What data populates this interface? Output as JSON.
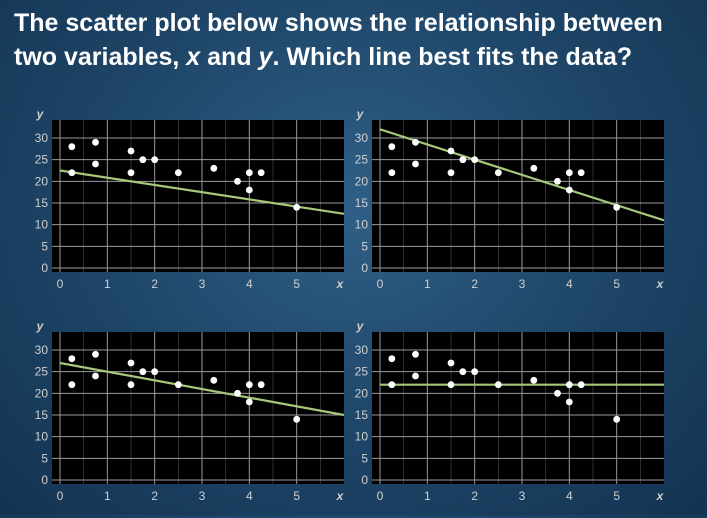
{
  "question": {
    "part1": "The scatter plot below shows the relationship between two variables, ",
    "var_x": "x",
    "and": " and ",
    "var_y": "y",
    "part2": ". Which line best fits the data?"
  },
  "colors": {
    "background": "#1d4466",
    "plot_bg": "#000000",
    "grid": "#9a9a9a",
    "points": "#ffffff",
    "fit_line": "#a5c87a",
    "axis_text": "#cfcfcf",
    "question_text": "#ffffff"
  },
  "chart_data": [
    {
      "type": "scatter",
      "xlabel": "x",
      "ylabel": "y",
      "xlim": [
        0,
        6
      ],
      "ylim": [
        0,
        30
      ],
      "xticks": [
        0,
        1,
        2,
        3,
        4,
        5
      ],
      "yticks": [
        0,
        5,
        10,
        15,
        20,
        25,
        30
      ],
      "grid": true,
      "points": [
        [
          0.25,
          28
        ],
        [
          0.25,
          22
        ],
        [
          0.75,
          29
        ],
        [
          0.75,
          24
        ],
        [
          1.5,
          27
        ],
        [
          1.5,
          22
        ],
        [
          1.75,
          25
        ],
        [
          2,
          25
        ],
        [
          2.5,
          22
        ],
        [
          3.25,
          23
        ],
        [
          3.75,
          20
        ],
        [
          4,
          22
        ],
        [
          4,
          18
        ],
        [
          4.25,
          22
        ],
        [
          5,
          14
        ]
      ],
      "line": [
        [
          0,
          22.5
        ],
        [
          6,
          12.5
        ]
      ]
    },
    {
      "type": "scatter",
      "xlabel": "x",
      "ylabel": "y",
      "xlim": [
        0,
        6
      ],
      "ylim": [
        0,
        30
      ],
      "xticks": [
        0,
        1,
        2,
        3,
        4,
        5
      ],
      "yticks": [
        0,
        5,
        10,
        15,
        20,
        25,
        30
      ],
      "grid": true,
      "points": [
        [
          0.25,
          28
        ],
        [
          0.25,
          22
        ],
        [
          0.75,
          29
        ],
        [
          0.75,
          24
        ],
        [
          1.5,
          27
        ],
        [
          1.5,
          22
        ],
        [
          1.75,
          25
        ],
        [
          2,
          25
        ],
        [
          2.5,
          22
        ],
        [
          3.25,
          23
        ],
        [
          3.75,
          20
        ],
        [
          4,
          22
        ],
        [
          4,
          18
        ],
        [
          4.25,
          22
        ],
        [
          5,
          14
        ]
      ],
      "line": [
        [
          0,
          32
        ],
        [
          6,
          11
        ]
      ]
    },
    {
      "type": "scatter",
      "xlabel": "x",
      "ylabel": "y",
      "xlim": [
        0,
        6
      ],
      "ylim": [
        0,
        30
      ],
      "xticks": [
        0,
        1,
        2,
        3,
        4,
        5
      ],
      "yticks": [
        0,
        5,
        10,
        15,
        20,
        25,
        30
      ],
      "grid": true,
      "points": [
        [
          0.25,
          28
        ],
        [
          0.25,
          22
        ],
        [
          0.75,
          29
        ],
        [
          0.75,
          24
        ],
        [
          1.5,
          27
        ],
        [
          1.5,
          22
        ],
        [
          1.75,
          25
        ],
        [
          2,
          25
        ],
        [
          2.5,
          22
        ],
        [
          3.25,
          23
        ],
        [
          3.75,
          20
        ],
        [
          4,
          22
        ],
        [
          4,
          18
        ],
        [
          4.25,
          22
        ],
        [
          5,
          14
        ]
      ],
      "line": [
        [
          0,
          27
        ],
        [
          6,
          15
        ]
      ]
    },
    {
      "type": "scatter",
      "xlabel": "x",
      "ylabel": "y",
      "xlim": [
        0,
        6
      ],
      "ylim": [
        0,
        30
      ],
      "xticks": [
        0,
        1,
        2,
        3,
        4,
        5
      ],
      "yticks": [
        0,
        5,
        10,
        15,
        20,
        25,
        30
      ],
      "grid": true,
      "points": [
        [
          0.25,
          28
        ],
        [
          0.25,
          22
        ],
        [
          0.75,
          29
        ],
        [
          0.75,
          24
        ],
        [
          1.5,
          27
        ],
        [
          1.5,
          22
        ],
        [
          1.75,
          25
        ],
        [
          2,
          25
        ],
        [
          2.5,
          22
        ],
        [
          3.25,
          23
        ],
        [
          3.75,
          20
        ],
        [
          4,
          22
        ],
        [
          4,
          18
        ],
        [
          4.25,
          22
        ],
        [
          5,
          14
        ]
      ],
      "line": [
        [
          0,
          22
        ],
        [
          6,
          22
        ]
      ]
    }
  ]
}
